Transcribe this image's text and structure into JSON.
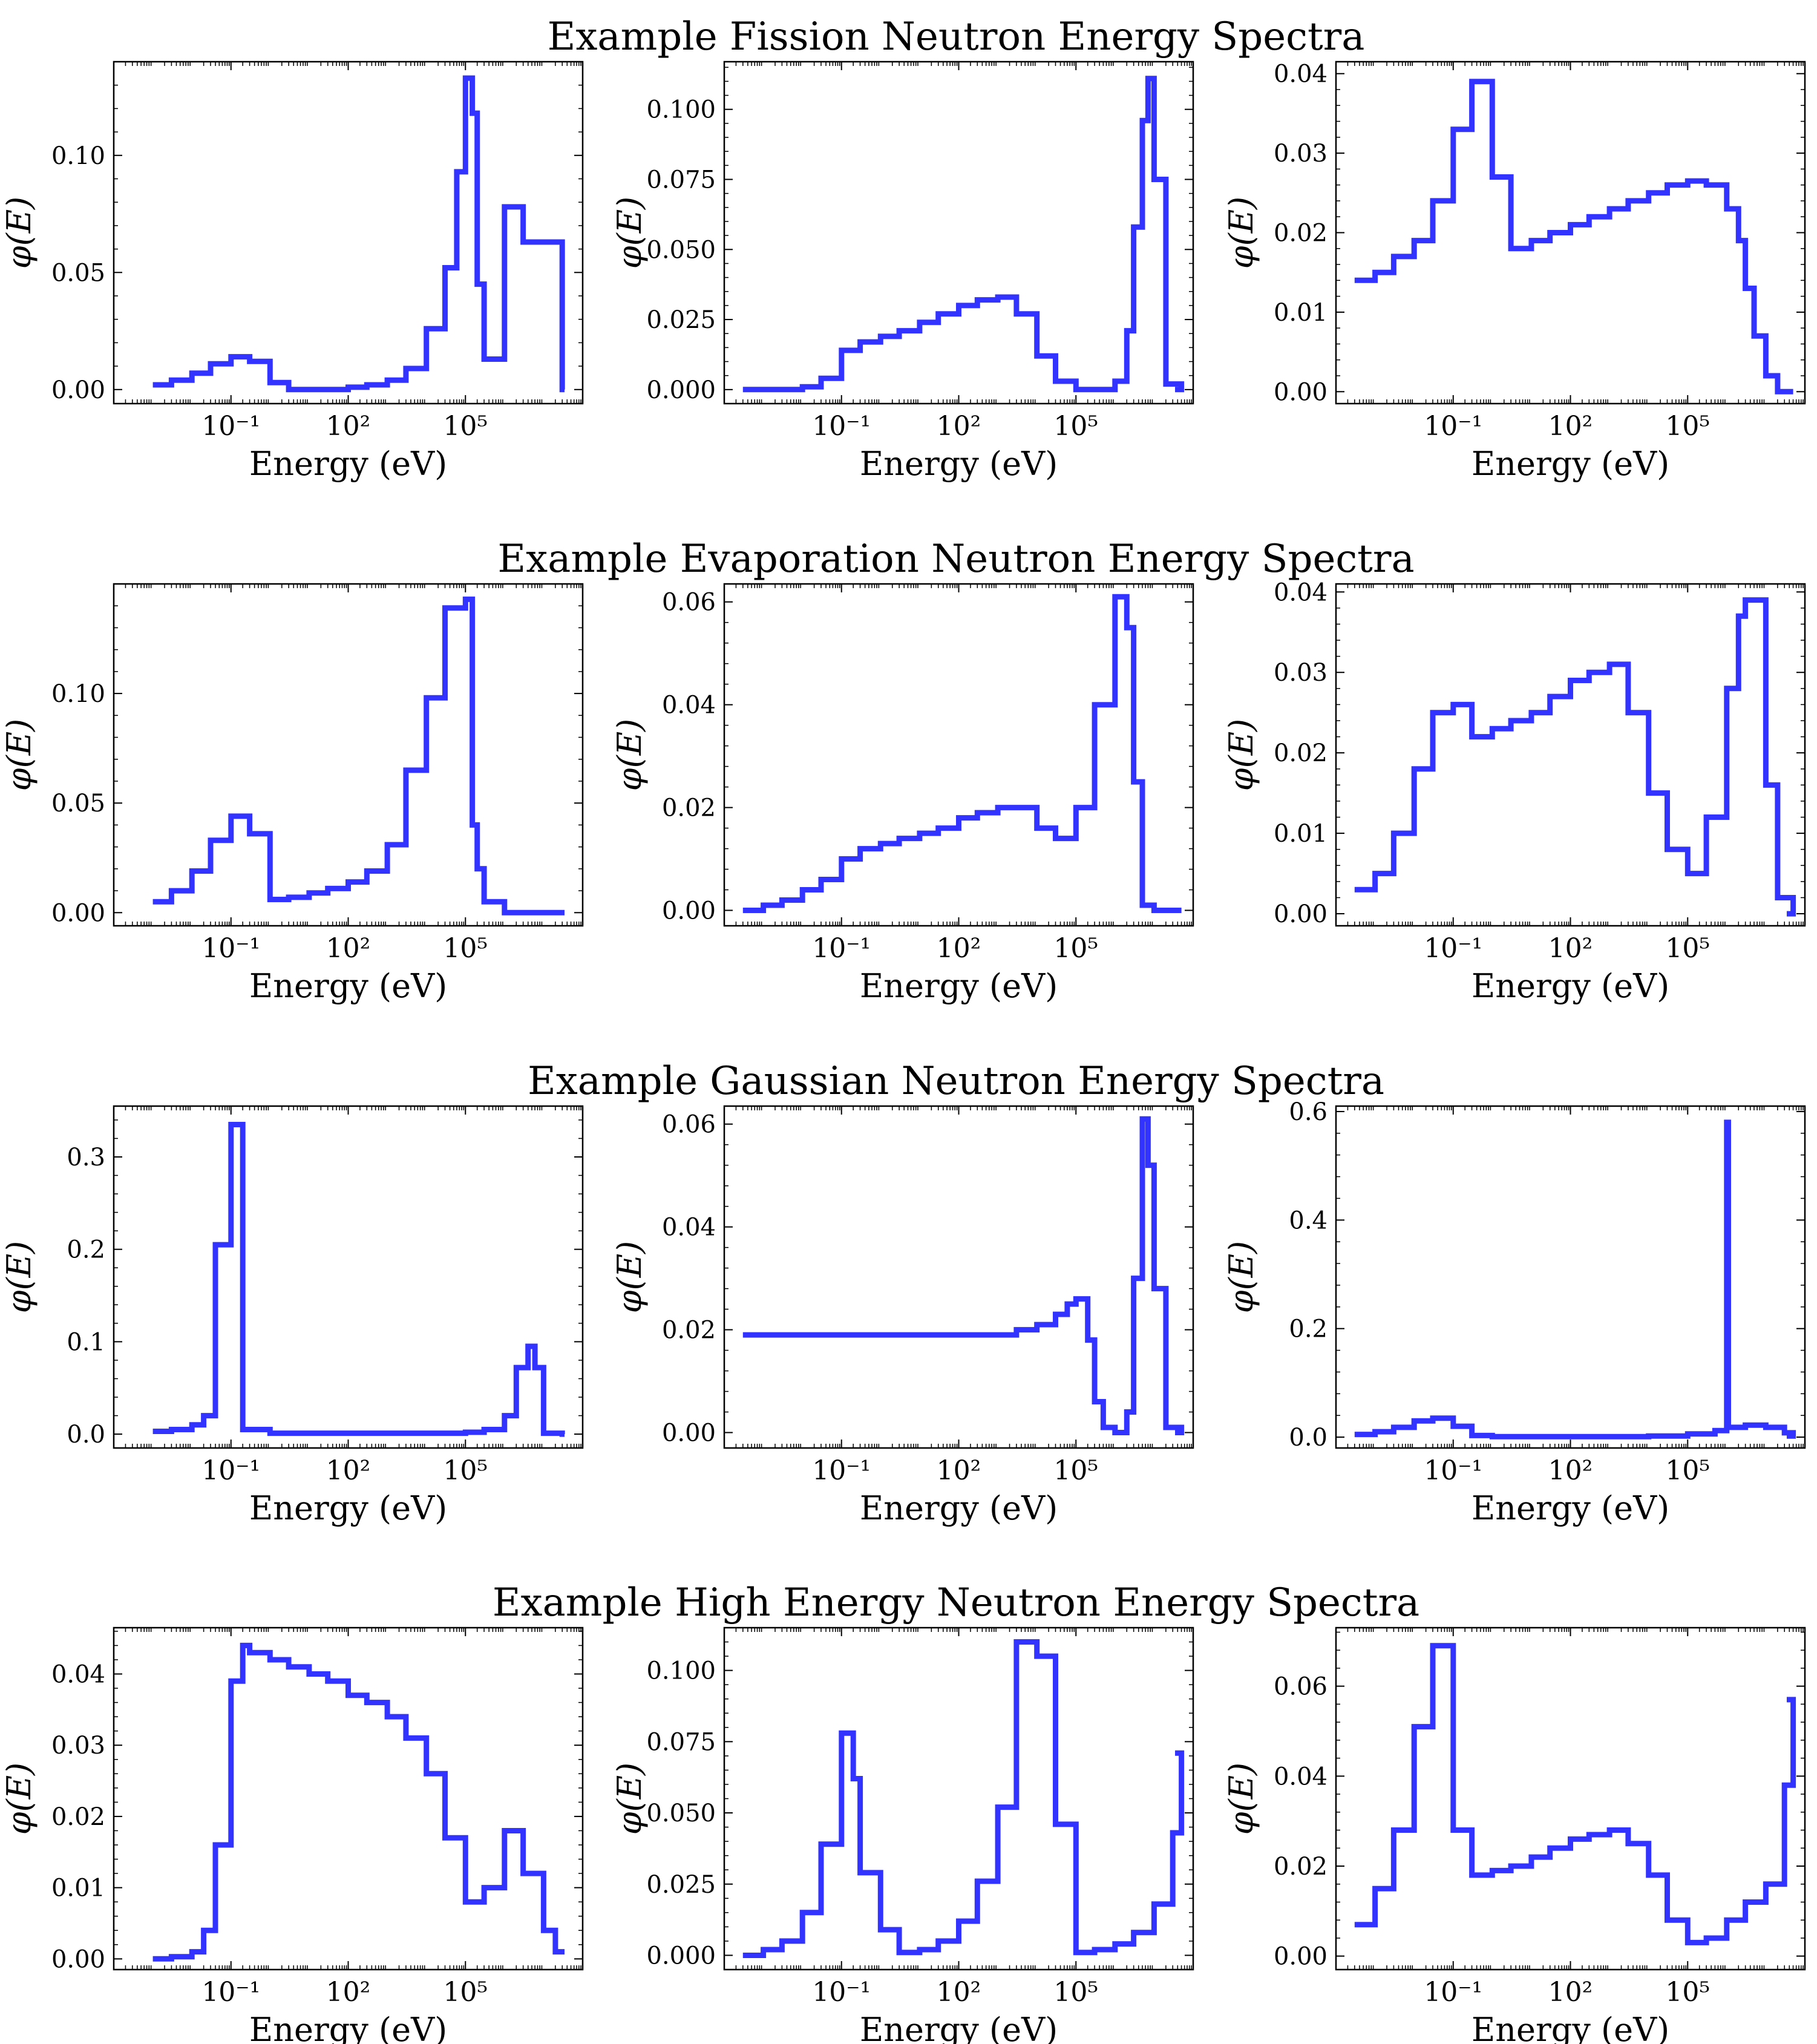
{
  "figure": {
    "row_titles": [
      "Example Fission Neutron Energy Spectra",
      "Example Evaporation Neutron Energy Spectra",
      "Example Gaussian Neutron Energy Spectra",
      "Example High Energy Neutron Energy Spectra"
    ],
    "line_color": "#3333ff"
  },
  "chart_data": [
    {
      "type": "line",
      "step": true,
      "row": 0,
      "col": 0,
      "xlabel": "Energy (eV)",
      "ylabel": "φ(E)",
      "xscale": "log",
      "xlim": [
        0.0001,
        100000000.0
      ],
      "ylim": [
        -0.006,
        0.14
      ],
      "yticks": [
        0.0,
        0.05,
        0.1
      ],
      "yticklabels": [
        "0.00",
        "0.05",
        "0.10"
      ],
      "xticks": [
        0.1,
        100,
        100000
      ],
      "xticklabels": [
        "10⁻¹",
        "10²",
        "10⁵"
      ],
      "x": [
        0.001,
        0.003,
        0.01,
        0.03,
        0.1,
        0.3,
        1,
        3,
        10,
        30,
        100,
        300,
        1000,
        3000,
        10000,
        30000,
        60000,
        100000,
        150000,
        200000,
        300000,
        1000000,
        3000000,
        30000000
      ],
      "values": [
        0.002,
        0.004,
        0.007,
        0.011,
        0.014,
        0.012,
        0.003,
        0.0,
        0.0,
        0.0,
        0.001,
        0.002,
        0.004,
        0.009,
        0.026,
        0.052,
        0.093,
        0.133,
        0.118,
        0.045,
        0.013,
        0.078,
        0.063,
        0.0
      ]
    },
    {
      "type": "line",
      "step": true,
      "row": 0,
      "col": 1,
      "xlabel": "Energy (eV)",
      "ylabel": "φ(E)",
      "xscale": "log",
      "xlim": [
        0.0001,
        100000000.0
      ],
      "ylim": [
        -0.005,
        0.117
      ],
      "yticks": [
        0.0,
        0.025,
        0.05,
        0.075,
        0.1
      ],
      "yticklabels": [
        "0.000",
        "0.025",
        "0.050",
        "0.075",
        "0.100"
      ],
      "xticks": [
        0.1,
        100,
        100000
      ],
      "xticklabels": [
        "10⁻¹",
        "10²",
        "10⁵"
      ],
      "x": [
        0.0003,
        0.001,
        0.003,
        0.01,
        0.03,
        0.1,
        0.3,
        1,
        3,
        10,
        30,
        100,
        300,
        1000,
        3000,
        10000,
        30000,
        100000,
        300000,
        1000000,
        2000000,
        3000000,
        5000000,
        7000000,
        10000000,
        20000000,
        50000000
      ],
      "values": [
        0.0,
        0.0,
        0.0,
        0.001,
        0.004,
        0.014,
        0.017,
        0.019,
        0.021,
        0.024,
        0.027,
        0.03,
        0.032,
        0.033,
        0.027,
        0.012,
        0.003,
        0.0,
        0.0,
        0.003,
        0.021,
        0.058,
        0.096,
        0.111,
        0.075,
        0.002,
        0.0
      ]
    },
    {
      "type": "line",
      "step": true,
      "row": 0,
      "col": 2,
      "xlabel": "Energy (eV)",
      "ylabel": "φ(E)",
      "xscale": "log",
      "xlim": [
        0.0001,
        100000000.0
      ],
      "ylim": [
        -0.0015,
        0.0415
      ],
      "yticks": [
        0.0,
        0.01,
        0.02,
        0.03,
        0.04
      ],
      "yticklabels": [
        "0.00",
        "0.01",
        "0.02",
        "0.03",
        "0.04"
      ],
      "xticks": [
        0.1,
        100,
        100000
      ],
      "xticklabels": [
        "10⁻¹",
        "10²",
        "10⁵"
      ],
      "x": [
        0.0003,
        0.001,
        0.003,
        0.01,
        0.03,
        0.1,
        0.3,
        1,
        3,
        10,
        30,
        100,
        300,
        1000,
        3000,
        10000,
        30000,
        100000,
        300000,
        1000000,
        2000000,
        3000000,
        5000000,
        10000000,
        20000000,
        50000000
      ],
      "values": [
        0.014,
        0.015,
        0.017,
        0.019,
        0.024,
        0.033,
        0.039,
        0.027,
        0.018,
        0.019,
        0.02,
        0.021,
        0.022,
        0.023,
        0.024,
        0.025,
        0.026,
        0.0265,
        0.026,
        0.023,
        0.019,
        0.013,
        0.007,
        0.002,
        0.0,
        0.0
      ]
    },
    {
      "type": "line",
      "step": true,
      "row": 1,
      "col": 0,
      "xlabel": "Energy (eV)",
      "ylabel": "φ(E)",
      "xscale": "log",
      "xlim": [
        0.0001,
        100000000.0
      ],
      "ylim": [
        -0.006,
        0.15
      ],
      "yticks": [
        0.0,
        0.05,
        0.1
      ],
      "yticklabels": [
        "0.00",
        "0.05",
        "0.10"
      ],
      "xticks": [
        0.1,
        100,
        100000
      ],
      "xticklabels": [
        "10⁻¹",
        "10²",
        "10⁵"
      ],
      "x": [
        0.001,
        0.003,
        0.01,
        0.03,
        0.1,
        0.3,
        1,
        3,
        10,
        30,
        100,
        300,
        1000,
        3000,
        10000,
        30000,
        100000,
        150000,
        200000,
        300000,
        1000000,
        30000000
      ],
      "values": [
        0.005,
        0.01,
        0.019,
        0.033,
        0.044,
        0.036,
        0.006,
        0.007,
        0.009,
        0.011,
        0.014,
        0.019,
        0.031,
        0.065,
        0.098,
        0.139,
        0.143,
        0.04,
        0.02,
        0.005,
        0.0,
        0.0
      ]
    },
    {
      "type": "line",
      "step": true,
      "row": 1,
      "col": 1,
      "xlabel": "Energy (eV)",
      "ylabel": "φ(E)",
      "xscale": "log",
      "xlim": [
        0.0001,
        100000000.0
      ],
      "ylim": [
        -0.003,
        0.0635
      ],
      "yticks": [
        0.0,
        0.02,
        0.04,
        0.06
      ],
      "yticklabels": [
        "0.00",
        "0.02",
        "0.04",
        "0.06"
      ],
      "xticks": [
        0.1,
        100,
        100000
      ],
      "xticklabels": [
        "10⁻¹",
        "10²",
        "10⁵"
      ],
      "x": [
        0.0003,
        0.001,
        0.003,
        0.01,
        0.03,
        0.1,
        0.3,
        1,
        3,
        10,
        30,
        100,
        300,
        1000,
        3000,
        10000,
        30000,
        100000,
        300000,
        1000000,
        2000000,
        3000000,
        5000000,
        10000000,
        50000000
      ],
      "values": [
        0.0,
        0.001,
        0.002,
        0.004,
        0.006,
        0.01,
        0.012,
        0.013,
        0.014,
        0.015,
        0.016,
        0.018,
        0.019,
        0.02,
        0.02,
        0.016,
        0.014,
        0.02,
        0.04,
        0.061,
        0.055,
        0.025,
        0.001,
        0.0,
        0.0
      ]
    },
    {
      "type": "line",
      "step": true,
      "row": 1,
      "col": 2,
      "xlabel": "Energy (eV)",
      "ylabel": "φ(E)",
      "xscale": "log",
      "xlim": [
        0.0001,
        100000000.0
      ],
      "ylim": [
        -0.0015,
        0.041
      ],
      "yticks": [
        0.0,
        0.01,
        0.02,
        0.03,
        0.04
      ],
      "yticklabels": [
        "0.00",
        "0.01",
        "0.02",
        "0.03",
        "0.04"
      ],
      "xticks": [
        0.1,
        100,
        100000
      ],
      "xticklabels": [
        "10⁻¹",
        "10²",
        "10⁵"
      ],
      "x": [
        0.0003,
        0.001,
        0.003,
        0.01,
        0.03,
        0.1,
        0.3,
        1,
        3,
        10,
        30,
        100,
        300,
        1000,
        3000,
        10000,
        30000,
        100000,
        300000,
        1000000,
        2000000,
        3000000,
        10000000,
        20000000,
        50000000
      ],
      "values": [
        0.003,
        0.005,
        0.01,
        0.018,
        0.025,
        0.026,
        0.022,
        0.023,
        0.024,
        0.025,
        0.027,
        0.029,
        0.03,
        0.031,
        0.025,
        0.015,
        0.008,
        0.005,
        0.012,
        0.028,
        0.037,
        0.039,
        0.016,
        0.002,
        0.0
      ]
    },
    {
      "type": "line",
      "step": true,
      "row": 2,
      "col": 0,
      "xlabel": "Energy (eV)",
      "ylabel": "φ(E)",
      "xscale": "log",
      "xlim": [
        0.0001,
        100000000.0
      ],
      "ylim": [
        -0.015,
        0.355
      ],
      "yticks": [
        0.0,
        0.1,
        0.2,
        0.3
      ],
      "yticklabels": [
        "0.0",
        "0.1",
        "0.2",
        "0.3"
      ],
      "xticks": [
        0.1,
        100,
        100000
      ],
      "xticklabels": [
        "10⁻¹",
        "10²",
        "10⁵"
      ],
      "x": [
        0.001,
        0.003,
        0.01,
        0.02,
        0.04,
        0.1,
        0.2,
        1,
        10,
        100,
        1000,
        10000,
        100000,
        300000,
        1000000,
        2000000,
        4000000,
        6000000,
        10000000,
        30000000
      ],
      "values": [
        0.003,
        0.005,
        0.01,
        0.02,
        0.205,
        0.335,
        0.005,
        0.001,
        0.001,
        0.001,
        0.001,
        0.001,
        0.002,
        0.005,
        0.02,
        0.072,
        0.095,
        0.072,
        0.001,
        0.0
      ]
    },
    {
      "type": "line",
      "step": true,
      "row": 2,
      "col": 1,
      "xlabel": "Energy (eV)",
      "ylabel": "φ(E)",
      "xscale": "log",
      "xlim": [
        0.0001,
        100000000.0
      ],
      "ylim": [
        -0.003,
        0.0635
      ],
      "yticks": [
        0.0,
        0.02,
        0.04,
        0.06
      ],
      "yticklabels": [
        "0.00",
        "0.02",
        "0.04",
        "0.06"
      ],
      "xticks": [
        0.1,
        100,
        100000
      ],
      "xticklabels": [
        "10⁻¹",
        "10²",
        "10⁵"
      ],
      "x": [
        0.0003,
        1,
        100,
        1000,
        3000,
        10000,
        30000,
        60000,
        100000,
        200000,
        300000,
        500000,
        1000000,
        2000000,
        3000000,
        5000000,
        7000000,
        10000000,
        20000000,
        50000000
      ],
      "values": [
        0.019,
        0.019,
        0.019,
        0.019,
        0.02,
        0.021,
        0.023,
        0.025,
        0.026,
        0.018,
        0.006,
        0.001,
        0.0,
        0.004,
        0.03,
        0.061,
        0.052,
        0.028,
        0.001,
        0.0
      ]
    },
    {
      "type": "line",
      "step": true,
      "row": 2,
      "col": 2,
      "xlabel": "Energy (eV)",
      "ylabel": "φ(E)",
      "xscale": "log",
      "xlim": [
        0.0001,
        100000000.0
      ],
      "ylim": [
        -0.02,
        0.61
      ],
      "yticks": [
        0.0,
        0.2,
        0.4,
        0.6
      ],
      "yticklabels": [
        "0.0",
        "0.2",
        "0.4",
        "0.6"
      ],
      "xticks": [
        0.1,
        100,
        100000
      ],
      "xticklabels": [
        "10⁻¹",
        "10²",
        "10⁵"
      ],
      "x": [
        0.0003,
        0.001,
        0.003,
        0.01,
        0.03,
        0.1,
        0.3,
        1,
        100,
        10000,
        100000,
        500000,
        1000000,
        1100000,
        3000000,
        10000000,
        30000000,
        50000000
      ],
      "values": [
        0.005,
        0.01,
        0.018,
        0.03,
        0.035,
        0.02,
        0.003,
        0.001,
        0.001,
        0.002,
        0.006,
        0.012,
        0.58,
        0.018,
        0.022,
        0.018,
        0.008,
        0.002
      ]
    },
    {
      "type": "line",
      "step": true,
      "row": 3,
      "col": 0,
      "xlabel": "Energy (eV)",
      "ylabel": "φ(E)",
      "xscale": "log",
      "xlim": [
        0.0001,
        100000000.0
      ],
      "ylim": [
        -0.0015,
        0.0465
      ],
      "yticks": [
        0.0,
        0.01,
        0.02,
        0.03,
        0.04
      ],
      "yticklabels": [
        "0.00",
        "0.01",
        "0.02",
        "0.03",
        "0.04"
      ],
      "xticks": [
        0.1,
        100,
        100000
      ],
      "xticklabels": [
        "10⁻¹",
        "10²",
        "10⁵"
      ],
      "x": [
        0.001,
        0.003,
        0.01,
        0.02,
        0.04,
        0.1,
        0.2,
        0.3,
        1,
        3,
        10,
        30,
        100,
        300,
        1000,
        3000,
        10000,
        30000,
        100000,
        300000,
        1000000,
        3000000,
        10000000,
        20000000
      ],
      "values": [
        0.0,
        0.0003,
        0.001,
        0.004,
        0.016,
        0.039,
        0.044,
        0.043,
        0.042,
        0.041,
        0.04,
        0.039,
        0.037,
        0.036,
        0.034,
        0.031,
        0.026,
        0.017,
        0.008,
        0.01,
        0.018,
        0.012,
        0.004,
        0.001
      ]
    },
    {
      "type": "line",
      "step": true,
      "row": 3,
      "col": 1,
      "xlabel": "Energy (eV)",
      "ylabel": "φ(E)",
      "xscale": "log",
      "xlim": [
        0.0001,
        100000000.0
      ],
      "ylim": [
        -0.005,
        0.115
      ],
      "yticks": [
        0.0,
        0.025,
        0.05,
        0.075,
        0.1
      ],
      "yticklabels": [
        "0.000",
        "0.025",
        "0.050",
        "0.075",
        "0.100"
      ],
      "xticks": [
        0.1,
        100,
        100000
      ],
      "xticklabels": [
        "10⁻¹",
        "10²",
        "10⁵"
      ],
      "x": [
        0.0003,
        0.001,
        0.003,
        0.01,
        0.03,
        0.1,
        0.2,
        0.3,
        1,
        3,
        10,
        30,
        100,
        300,
        1000,
        3000,
        10000,
        30000,
        100000,
        300000,
        1000000,
        3000000,
        10000000,
        30000000,
        50000000
      ],
      "values": [
        0.0,
        0.002,
        0.005,
        0.015,
        0.039,
        0.078,
        0.062,
        0.029,
        0.009,
        0.001,
        0.002,
        0.005,
        0.012,
        0.026,
        0.052,
        0.11,
        0.105,
        0.046,
        0.001,
        0.002,
        0.004,
        0.008,
        0.018,
        0.043,
        0.071
      ]
    },
    {
      "type": "line",
      "step": true,
      "row": 3,
      "col": 2,
      "xlabel": "Energy (eV)",
      "ylabel": "φ(E)",
      "xscale": "log",
      "xlim": [
        0.0001,
        100000000.0
      ],
      "ylim": [
        -0.003,
        0.073
      ],
      "yticks": [
        0.0,
        0.02,
        0.04,
        0.06
      ],
      "yticklabels": [
        "0.00",
        "0.02",
        "0.04",
        "0.06"
      ],
      "xticks": [
        0.1,
        100,
        100000
      ],
      "xticklabels": [
        "10⁻¹",
        "10²",
        "10⁵"
      ],
      "x": [
        0.0003,
        0.001,
        0.003,
        0.01,
        0.03,
        0.1,
        0.3,
        1,
        3,
        10,
        30,
        100,
        300,
        1000,
        3000,
        10000,
        30000,
        100000,
        300000,
        1000000,
        3000000,
        10000000,
        30000000,
        50000000
      ],
      "values": [
        0.007,
        0.015,
        0.028,
        0.051,
        0.069,
        0.028,
        0.018,
        0.019,
        0.02,
        0.022,
        0.024,
        0.026,
        0.027,
        0.028,
        0.025,
        0.018,
        0.008,
        0.003,
        0.004,
        0.008,
        0.012,
        0.016,
        0.038,
        0.057
      ]
    }
  ]
}
